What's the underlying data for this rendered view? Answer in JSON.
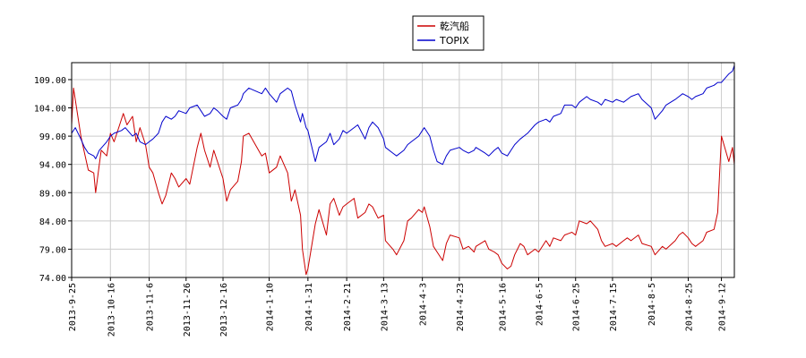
{
  "chart_data": {
    "type": "line",
    "title": "",
    "xlabel": "",
    "ylabel": "",
    "ylim": [
      74.0,
      112.0
    ],
    "y_ticks": [
      "74.00",
      "79.00",
      "84.00",
      "89.00",
      "94.00",
      "99.00",
      "104.00",
      "109.00"
    ],
    "x_ticks": [
      "2013-9-25",
      "2013-10-16",
      "2013-11-6",
      "2013-11-26",
      "2013-12-16",
      "2014-1-10",
      "2014-1-31",
      "2014-2-21",
      "2014-3-13",
      "2014-4-3",
      "2014-4-23",
      "2014-5-16",
      "2014-6-5",
      "2014-6-25",
      "2014-7-15",
      "2014-8-5",
      "2014-8-25",
      "2014-9-12"
    ],
    "x_range": [
      "2013-9-25",
      "2014-9-19"
    ],
    "grid": true,
    "legend_position": "top-center",
    "series": [
      {
        "name": "乾汽船",
        "color": "#cc0000",
        "points": [
          [
            "2013-9-25",
            101.0
          ],
          [
            "2013-9-26",
            107.5
          ],
          [
            "2013-9-30",
            99.0
          ],
          [
            "2013-10-2",
            96.0
          ],
          [
            "2013-10-4",
            93.0
          ],
          [
            "2013-10-7",
            92.5
          ],
          [
            "2013-10-8",
            89.0
          ],
          [
            "2013-10-10",
            94.0
          ],
          [
            "2013-10-11",
            96.5
          ],
          [
            "2013-10-14",
            95.5
          ],
          [
            "2013-10-16",
            99.5
          ],
          [
            "2013-10-18",
            98.0
          ],
          [
            "2013-10-21",
            101.0
          ],
          [
            "2013-10-23",
            103.0
          ],
          [
            "2013-10-25",
            101.0
          ],
          [
            "2013-10-28",
            102.5
          ],
          [
            "2013-10-30",
            98.0
          ],
          [
            "2013-11-1",
            100.5
          ],
          [
            "2013-11-4",
            97.5
          ],
          [
            "2013-11-6",
            93.5
          ],
          [
            "2013-11-8",
            92.5
          ],
          [
            "2013-11-11",
            89.0
          ],
          [
            "2013-11-13",
            87.0
          ],
          [
            "2013-11-15",
            88.5
          ],
          [
            "2013-11-18",
            92.5
          ],
          [
            "2013-11-20",
            91.5
          ],
          [
            "2013-11-22",
            90.0
          ],
          [
            "2013-11-26",
            91.5
          ],
          [
            "2013-11-28",
            90.5
          ],
          [
            "2013-12-2",
            97.0
          ],
          [
            "2013-12-4",
            99.5
          ],
          [
            "2013-12-6",
            96.5
          ],
          [
            "2013-12-9",
            93.5
          ],
          [
            "2013-12-11",
            96.5
          ],
          [
            "2013-12-13",
            94.5
          ],
          [
            "2013-12-16",
            91.5
          ],
          [
            "2013-12-18",
            87.5
          ],
          [
            "2013-12-20",
            89.5
          ],
          [
            "2013-12-24",
            91.0
          ],
          [
            "2013-12-26",
            94.5
          ],
          [
            "2013-12-27",
            99.0
          ],
          [
            "2013-12-30",
            99.5
          ],
          [
            "2014-1-6",
            95.5
          ],
          [
            "2014-1-8",
            96.0
          ],
          [
            "2014-1-10",
            92.5
          ],
          [
            "2014-1-14",
            93.5
          ],
          [
            "2014-1-16",
            95.5
          ],
          [
            "2014-1-20",
            92.5
          ],
          [
            "2014-1-22",
            87.5
          ],
          [
            "2014-1-24",
            89.5
          ],
          [
            "2014-1-27",
            85.0
          ],
          [
            "2014-1-28",
            79.0
          ],
          [
            "2014-1-30",
            74.5
          ],
          [
            "2014-1-31",
            75.5
          ],
          [
            "2014-2-4",
            83.5
          ],
          [
            "2014-2-6",
            86.0
          ],
          [
            "2014-2-10",
            81.5
          ],
          [
            "2014-2-12",
            87.0
          ],
          [
            "2014-2-14",
            88.0
          ],
          [
            "2014-2-17",
            85.0
          ],
          [
            "2014-2-19",
            86.5
          ],
          [
            "2014-2-21",
            87.0
          ],
          [
            "2014-2-25",
            88.0
          ],
          [
            "2014-2-27",
            84.5
          ],
          [
            "2014-3-3",
            85.5
          ],
          [
            "2014-3-5",
            87.0
          ],
          [
            "2014-3-7",
            86.5
          ],
          [
            "2014-3-10",
            84.5
          ],
          [
            "2014-3-13",
            85.0
          ],
          [
            "2014-3-14",
            80.5
          ],
          [
            "2014-3-18",
            79.0
          ],
          [
            "2014-3-20",
            78.0
          ],
          [
            "2014-3-24",
            80.5
          ],
          [
            "2014-3-26",
            84.0
          ],
          [
            "2014-3-28",
            84.5
          ],
          [
            "2014-4-1",
            86.0
          ],
          [
            "2014-4-3",
            85.5
          ],
          [
            "2014-4-4",
            86.5
          ],
          [
            "2014-4-7",
            83.0
          ],
          [
            "2014-4-9",
            79.5
          ],
          [
            "2014-4-11",
            78.5
          ],
          [
            "2014-4-14",
            77.0
          ],
          [
            "2014-4-16",
            80.0
          ],
          [
            "2014-4-18",
            81.5
          ],
          [
            "2014-4-23",
            81.0
          ],
          [
            "2014-4-25",
            79.0
          ],
          [
            "2014-4-28",
            79.5
          ],
          [
            "2014-5-1",
            78.5
          ],
          [
            "2014-5-2",
            79.5
          ],
          [
            "2014-5-7",
            80.5
          ],
          [
            "2014-5-9",
            79.0
          ],
          [
            "2014-5-12",
            78.5
          ],
          [
            "2014-5-14",
            78.0
          ],
          [
            "2014-5-16",
            76.5
          ],
          [
            "2014-5-19",
            75.5
          ],
          [
            "2014-5-21",
            76.0
          ],
          [
            "2014-5-23",
            78.0
          ],
          [
            "2014-5-26",
            80.0
          ],
          [
            "2014-5-28",
            79.5
          ],
          [
            "2014-5-30",
            78.0
          ],
          [
            "2014-6-3",
            79.0
          ],
          [
            "2014-6-5",
            78.5
          ],
          [
            "2014-6-9",
            80.5
          ],
          [
            "2014-6-11",
            79.5
          ],
          [
            "2014-6-13",
            81.0
          ],
          [
            "2014-6-17",
            80.5
          ],
          [
            "2014-6-19",
            81.5
          ],
          [
            "2014-6-23",
            82.0
          ],
          [
            "2014-6-25",
            81.5
          ],
          [
            "2014-6-27",
            84.0
          ],
          [
            "2014-7-1",
            83.5
          ],
          [
            "2014-7-3",
            84.0
          ],
          [
            "2014-7-7",
            82.5
          ],
          [
            "2014-7-9",
            80.5
          ],
          [
            "2014-7-11",
            79.5
          ],
          [
            "2014-7-15",
            80.0
          ],
          [
            "2014-7-17",
            79.5
          ],
          [
            "2014-7-21",
            80.5
          ],
          [
            "2014-7-23",
            81.0
          ],
          [
            "2014-7-25",
            80.5
          ],
          [
            "2014-7-29",
            81.5
          ],
          [
            "2014-7-31",
            80.0
          ],
          [
            "2014-8-5",
            79.5
          ],
          [
            "2014-8-7",
            78.0
          ],
          [
            "2014-8-11",
            79.5
          ],
          [
            "2014-8-13",
            79.0
          ],
          [
            "2014-8-18",
            80.5
          ],
          [
            "2014-8-20",
            81.5
          ],
          [
            "2014-8-22",
            82.0
          ],
          [
            "2014-8-25",
            81.0
          ],
          [
            "2014-8-27",
            80.0
          ],
          [
            "2014-8-29",
            79.5
          ],
          [
            "2014-9-2",
            80.5
          ],
          [
            "2014-9-4",
            82.0
          ],
          [
            "2014-9-8",
            82.5
          ],
          [
            "2014-9-10",
            85.5
          ],
          [
            "2014-9-12",
            99.0
          ],
          [
            "2014-9-16",
            94.5
          ],
          [
            "2014-9-18",
            97.0
          ],
          [
            "2014-9-19",
            94.0
          ]
        ]
      },
      {
        "name": "TOPIX",
        "color": "#0000cc",
        "points": [
          [
            "2013-9-25",
            99.5
          ],
          [
            "2013-9-27",
            100.5
          ],
          [
            "2013-9-30",
            98.5
          ],
          [
            "2013-10-2",
            97.0
          ],
          [
            "2013-10-4",
            96.0
          ],
          [
            "2013-10-7",
            95.5
          ],
          [
            "2013-10-8",
            95.0
          ],
          [
            "2013-10-10",
            96.5
          ],
          [
            "2013-10-14",
            98.0
          ],
          [
            "2013-10-16",
            99.0
          ],
          [
            "2013-10-18",
            99.5
          ],
          [
            "2013-10-22",
            100.0
          ],
          [
            "2013-10-24",
            100.5
          ],
          [
            "2013-10-28",
            99.0
          ],
          [
            "2013-10-30",
            99.5
          ],
          [
            "2013-11-1",
            98.0
          ],
          [
            "2013-11-4",
            97.5
          ],
          [
            "2013-11-6",
            98.0
          ],
          [
            "2013-11-8",
            98.5
          ],
          [
            "2013-11-11",
            99.5
          ],
          [
            "2013-11-13",
            101.5
          ],
          [
            "2013-11-15",
            102.5
          ],
          [
            "2013-11-18",
            102.0
          ],
          [
            "2013-11-20",
            102.5
          ],
          [
            "2013-11-22",
            103.5
          ],
          [
            "2013-11-26",
            103.0
          ],
          [
            "2013-11-28",
            104.0
          ],
          [
            "2013-12-2",
            104.5
          ],
          [
            "2013-12-4",
            103.5
          ],
          [
            "2013-12-6",
            102.5
          ],
          [
            "2013-12-9",
            103.0
          ],
          [
            "2013-12-11",
            104.0
          ],
          [
            "2013-12-13",
            103.5
          ],
          [
            "2013-12-16",
            102.5
          ],
          [
            "2013-12-18",
            102.0
          ],
          [
            "2013-12-20",
            104.0
          ],
          [
            "2013-12-24",
            104.5
          ],
          [
            "2013-12-26",
            105.5
          ],
          [
            "2013-12-27",
            106.5
          ],
          [
            "2013-12-30",
            107.5
          ],
          [
            "2014-1-6",
            106.5
          ],
          [
            "2014-1-8",
            107.5
          ],
          [
            "2014-1-10",
            106.5
          ],
          [
            "2014-1-14",
            105.0
          ],
          [
            "2014-1-16",
            106.5
          ],
          [
            "2014-1-20",
            107.5
          ],
          [
            "2014-1-22",
            107.0
          ],
          [
            "2014-1-24",
            104.5
          ],
          [
            "2014-1-27",
            101.5
          ],
          [
            "2014-1-28",
            103.0
          ],
          [
            "2014-1-30",
            100.5
          ],
          [
            "2014-1-31",
            100.0
          ],
          [
            "2014-2-4",
            94.5
          ],
          [
            "2014-2-6",
            97.0
          ],
          [
            "2014-2-10",
            98.0
          ],
          [
            "2014-2-12",
            99.5
          ],
          [
            "2014-2-14",
            97.5
          ],
          [
            "2014-2-17",
            98.5
          ],
          [
            "2014-2-19",
            100.0
          ],
          [
            "2014-2-21",
            99.5
          ],
          [
            "2014-2-25",
            100.5
          ],
          [
            "2014-2-27",
            101.0
          ],
          [
            "2014-3-3",
            98.5
          ],
          [
            "2014-3-5",
            100.5
          ],
          [
            "2014-3-7",
            101.5
          ],
          [
            "2014-3-10",
            100.5
          ],
          [
            "2014-3-13",
            98.5
          ],
          [
            "2014-3-14",
            97.0
          ],
          [
            "2014-3-18",
            96.0
          ],
          [
            "2014-3-20",
            95.5
          ],
          [
            "2014-3-24",
            96.5
          ],
          [
            "2014-3-26",
            97.5
          ],
          [
            "2014-3-28",
            98.0
          ],
          [
            "2014-4-1",
            99.0
          ],
          [
            "2014-4-3",
            100.0
          ],
          [
            "2014-4-4",
            100.5
          ],
          [
            "2014-4-7",
            99.0
          ],
          [
            "2014-4-9",
            96.5
          ],
          [
            "2014-4-11",
            94.5
          ],
          [
            "2014-4-14",
            94.0
          ],
          [
            "2014-4-16",
            95.5
          ],
          [
            "2014-4-18",
            96.5
          ],
          [
            "2014-4-23",
            97.0
          ],
          [
            "2014-4-25",
            96.5
          ],
          [
            "2014-4-28",
            96.0
          ],
          [
            "2014-5-1",
            96.5
          ],
          [
            "2014-5-2",
            97.0
          ],
          [
            "2014-5-7",
            96.0
          ],
          [
            "2014-5-9",
            95.5
          ],
          [
            "2014-5-12",
            96.5
          ],
          [
            "2014-5-14",
            97.0
          ],
          [
            "2014-5-16",
            96.0
          ],
          [
            "2014-5-19",
            95.5
          ],
          [
            "2014-5-21",
            96.5
          ],
          [
            "2014-5-23",
            97.5
          ],
          [
            "2014-5-26",
            98.5
          ],
          [
            "2014-5-28",
            99.0
          ],
          [
            "2014-5-30",
            99.5
          ],
          [
            "2014-6-3",
            101.0
          ],
          [
            "2014-6-5",
            101.5
          ],
          [
            "2014-6-9",
            102.0
          ],
          [
            "2014-6-11",
            101.5
          ],
          [
            "2014-6-13",
            102.5
          ],
          [
            "2014-6-17",
            103.0
          ],
          [
            "2014-6-19",
            104.5
          ],
          [
            "2014-6-23",
            104.5
          ],
          [
            "2014-6-25",
            104.0
          ],
          [
            "2014-6-27",
            105.0
          ],
          [
            "2014-7-1",
            106.0
          ],
          [
            "2014-7-3",
            105.5
          ],
          [
            "2014-7-7",
            105.0
          ],
          [
            "2014-7-9",
            104.5
          ],
          [
            "2014-7-11",
            105.5
          ],
          [
            "2014-7-15",
            105.0
          ],
          [
            "2014-7-17",
            105.5
          ],
          [
            "2014-7-21",
            105.0
          ],
          [
            "2014-7-23",
            105.5
          ],
          [
            "2014-7-25",
            106.0
          ],
          [
            "2014-7-29",
            106.5
          ],
          [
            "2014-7-31",
            105.5
          ],
          [
            "2014-8-5",
            104.0
          ],
          [
            "2014-8-7",
            102.0
          ],
          [
            "2014-8-11",
            103.5
          ],
          [
            "2014-8-13",
            104.5
          ],
          [
            "2014-8-18",
            105.5
          ],
          [
            "2014-8-20",
            106.0
          ],
          [
            "2014-8-22",
            106.5
          ],
          [
            "2014-8-25",
            106.0
          ],
          [
            "2014-8-27",
            105.5
          ],
          [
            "2014-8-29",
            106.0
          ],
          [
            "2014-9-2",
            106.5
          ],
          [
            "2014-9-4",
            107.5
          ],
          [
            "2014-9-8",
            108.0
          ],
          [
            "2014-9-10",
            108.5
          ],
          [
            "2014-9-12",
            108.5
          ],
          [
            "2014-9-16",
            110.0
          ],
          [
            "2014-9-18",
            110.5
          ],
          [
            "2014-9-19",
            111.5
          ]
        ]
      }
    ]
  }
}
